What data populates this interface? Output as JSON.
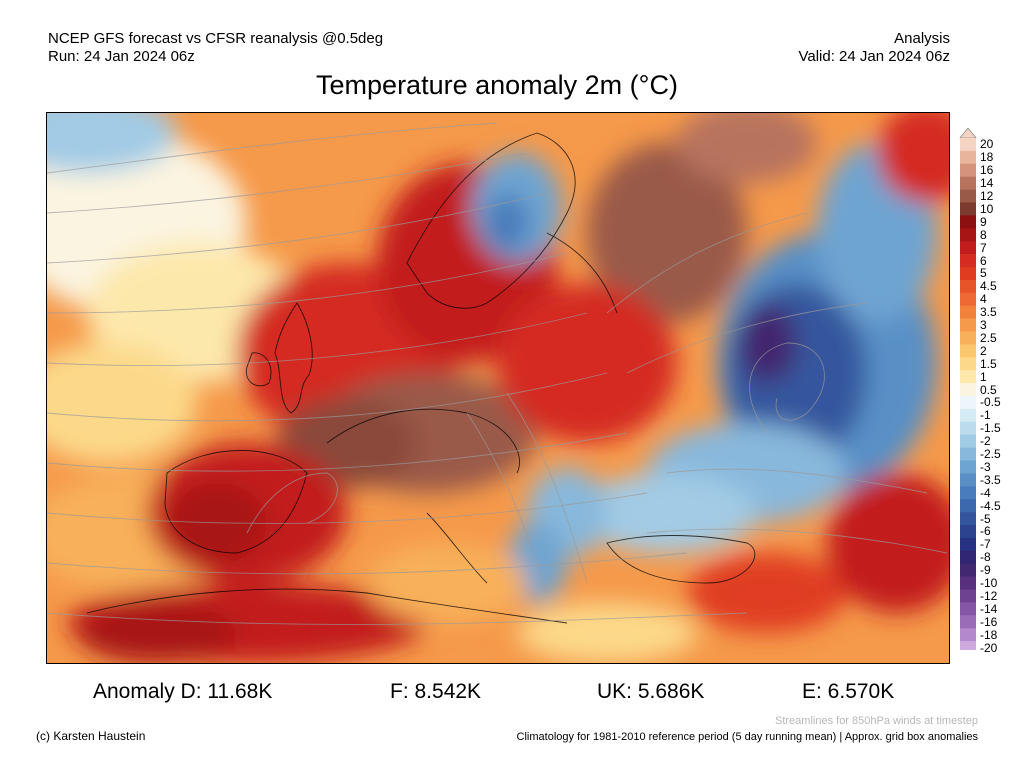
{
  "header": {
    "model_line": "NCEP GFS forecast vs CFSR reanalysis @0.5deg",
    "run_line": "Run: 24 Jan 2024 06z",
    "type_line": "Analysis",
    "valid_line": "Valid: 24 Jan 2024 06z"
  },
  "title": "Temperature anomaly 2m (°C)",
  "colorbar": {
    "labels": [
      "20",
      "18",
      "16",
      "14",
      "12",
      "10",
      "9",
      "8",
      "7",
      "6",
      "5",
      "4.5",
      "4",
      "3.5",
      "3",
      "2.5",
      "2",
      "1.5",
      "1",
      "0.5",
      "-0.5",
      "-1",
      "-1.5",
      "-2",
      "-2.5",
      "-3",
      "-3.5",
      "-4",
      "-4.5",
      "-5",
      "-6",
      "-7",
      "-8",
      "-9",
      "-10",
      "-12",
      "-14",
      "-16",
      "-18",
      "-20"
    ],
    "colors": [
      "#f5d4c4",
      "#e8b49c",
      "#d4937a",
      "#b8735e",
      "#9a5a48",
      "#7d3a2e",
      "#8c1010",
      "#a81515",
      "#c21c1c",
      "#d42c20",
      "#e03c22",
      "#e8542a",
      "#ee6a32",
      "#f2813c",
      "#f5994a",
      "#f8b05a",
      "#fac66e",
      "#fcd98a",
      "#fde8ac",
      "#fbf4e0",
      "#eef6fb",
      "#d4eaf5",
      "#bcdcee",
      "#a2cbe5",
      "#88b8dc",
      "#6ea4d1",
      "#5890c6",
      "#487cbb",
      "#3c68ad",
      "#34569e",
      "#2c4490",
      "#283282",
      "#302674",
      "#42286e",
      "#58307e",
      "#6e4290",
      "#8456a4",
      "#9a6cb8",
      "#b488cc",
      "#ccaade"
    ]
  },
  "anomalies": {
    "germany": "Anomaly D: 11.68K",
    "france": "F: 8.542K",
    "uk": "UK: 5.686K",
    "spain": "E: 6.570K"
  },
  "footer": {
    "credit": "(c) Karsten Haustein",
    "streamline_note": "Streamlines for 850hPa winds at timestep",
    "climatology_note": "Climatology for 1981-2010 reference period (5 day running mean) | Approx. grid box anomalies"
  },
  "map_legend_colors": {
    "warm_strong": "#c21c1c",
    "warm_brown": "#9a5a48",
    "cold_blue": "#3c68ad",
    "cold_purple": "#42286e"
  }
}
